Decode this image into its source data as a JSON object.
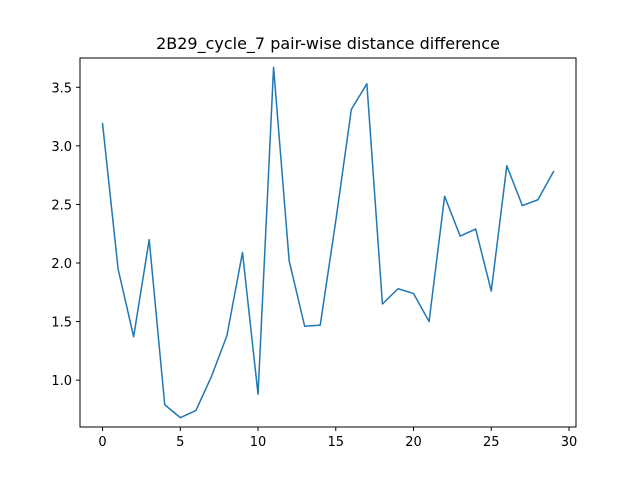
{
  "chart_data": {
    "type": "line",
    "title": "2B29_cycle_7 pair-wise distance difference",
    "xlabel": "",
    "ylabel": "",
    "xlim": [
      -1.45,
      30.45
    ],
    "ylim": [
      0.6,
      3.75
    ],
    "xticks": [
      0,
      5,
      10,
      15,
      20,
      25,
      30
    ],
    "yticks": [
      1.0,
      1.5,
      2.0,
      2.5,
      3.0,
      3.5
    ],
    "ytick_labels": [
      "1.0",
      "1.5",
      "2.0",
      "2.5",
      "3.0",
      "3.5"
    ],
    "grid": false,
    "legend": "none",
    "series": [
      {
        "color": "#1f77b4",
        "x": [
          0,
          1,
          2,
          3,
          4,
          5,
          6,
          7,
          8,
          9,
          10,
          11,
          12,
          13,
          14,
          15,
          16,
          17,
          18,
          19,
          20,
          21,
          22,
          23,
          24,
          25,
          26,
          27,
          28,
          29
        ],
        "y": [
          3.19,
          1.95,
          1.37,
          2.2,
          0.79,
          0.68,
          0.74,
          1.03,
          1.38,
          2.09,
          0.88,
          3.67,
          2.02,
          1.46,
          1.47,
          2.36,
          3.31,
          3.53,
          1.65,
          1.78,
          1.74,
          1.5,
          2.57,
          2.23,
          2.29,
          1.76,
          2.83,
          2.49,
          2.54,
          2.78
        ]
      }
    ]
  }
}
